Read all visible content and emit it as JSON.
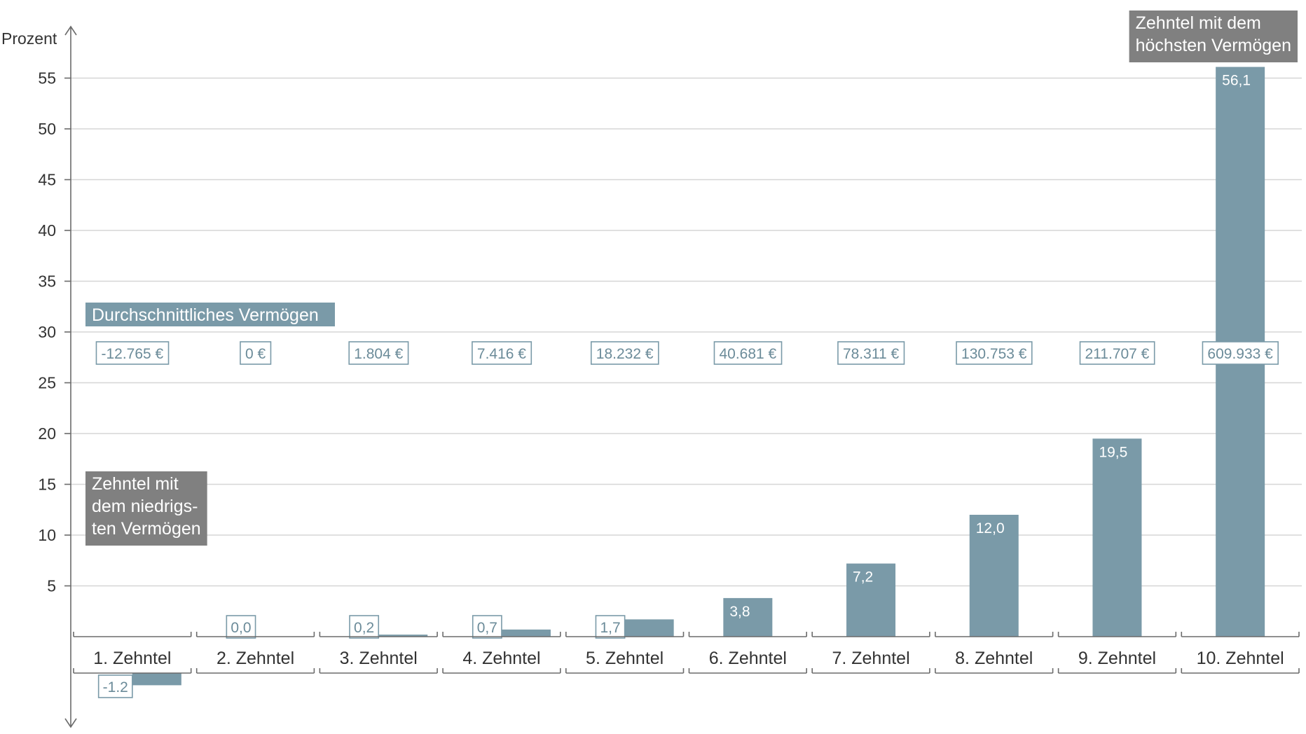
{
  "chart_data": {
    "type": "bar",
    "ylabel": "Prozent",
    "ylim": [
      -8,
      60
    ],
    "yticks": [
      5,
      10,
      15,
      20,
      25,
      30,
      35,
      40,
      45,
      50,
      55
    ],
    "ytick_labels": [
      "5",
      "10",
      "15",
      "20",
      "25",
      "30",
      "35",
      "40",
      "45",
      "50",
      "55"
    ],
    "grid": true,
    "categories": [
      "1. Zehntel",
      "2. Zehntel",
      "3. Zehntel",
      "4. Zehntel",
      "5. Zehntel",
      "6. Zehntel",
      "7. Zehntel",
      "8. Zehntel",
      "9. Zehntel",
      "10. Zehntel"
    ],
    "values": [
      -1.2,
      0.0,
      0.2,
      0.7,
      1.7,
      3.8,
      7.2,
      12.0,
      19.5,
      56.1
    ],
    "value_labels": [
      "-1.2",
      "0,0",
      "0,2",
      "0,7",
      "1,7",
      "3,8",
      "7,2",
      "12,0",
      "19,5",
      "56,1"
    ],
    "average_title": "Durchschnittliches Vermögen",
    "averages": [
      "-12.765 €",
      "0 €",
      "1.804 €",
      "7.416 €",
      "18.232 €",
      "40.681 €",
      "78.311 €",
      "130.753 €",
      "211.707 €",
      "609.933 €"
    ],
    "annotation_low": [
      "Zehntel mit",
      "dem niedrigs-",
      "ten Vermögen"
    ],
    "annotation_high": [
      "Zehntel mit dem",
      "höchsten Vermögen"
    ],
    "colors": {
      "bar": "#7a9aa8",
      "gray_banner": "#808080",
      "grid": "#d6d6d6"
    }
  }
}
